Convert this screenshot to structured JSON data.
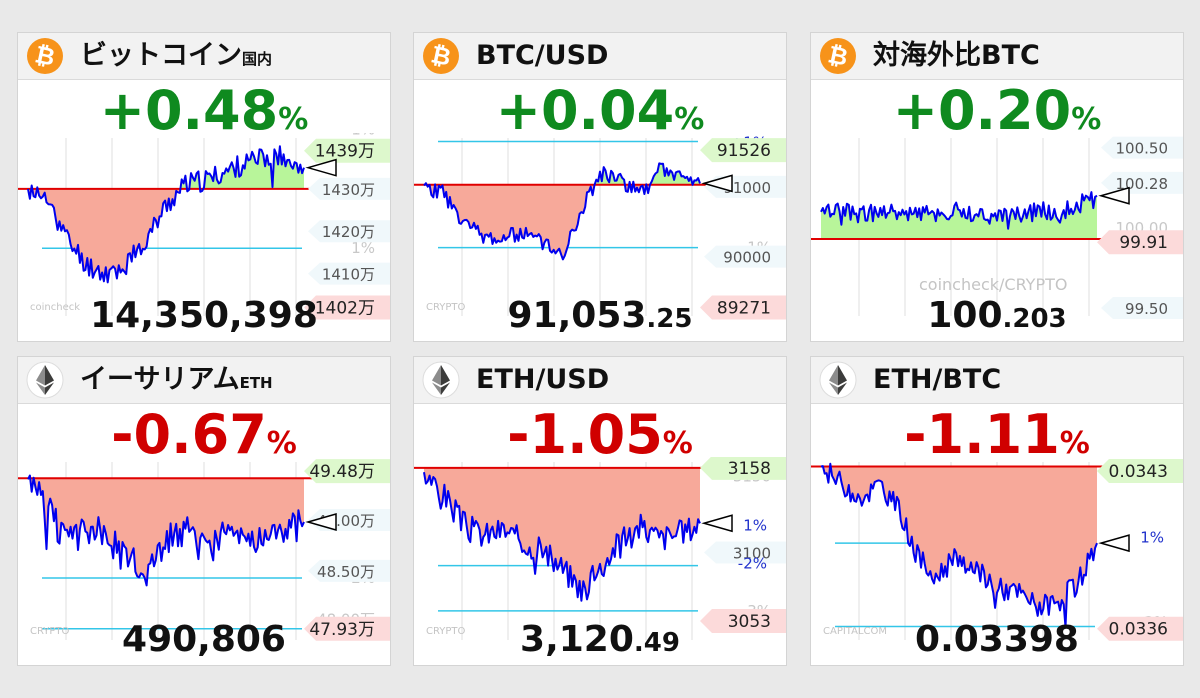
{
  "colors": {
    "up": "#0f8a1f",
    "down": "#d00000",
    "btc": "#f7931a",
    "line": "#0000ee",
    "base": "#e00000",
    "band": "#33c6e8",
    "area_down": "#f7a99a",
    "area_up": "#b8f59a"
  },
  "cards": [
    {
      "id": "btc-jpy",
      "icon": "bitcoin-icon",
      "title": "ビットコイン",
      "suffix": "国内",
      "change": "+0.48",
      "unit": "%",
      "direction": "up",
      "price": "14,350,398",
      "price_dec": "",
      "watermark": "coincheck",
      "chart_data": {
        "type": "line",
        "ylim": [
          1400,
          1442
        ],
        "base": 1430,
        "bands": [
          1444,
          1416
        ],
        "labels": [
          {
            "text": "1439万",
            "y": 1439,
            "style": "up"
          },
          {
            "text": "1430万",
            "y": 1430,
            "style": "plain"
          },
          {
            "text": "1420万",
            "y": 1420,
            "style": "plain"
          },
          {
            "text": "1410万",
            "y": 1410,
            "style": "plain"
          },
          {
            "text": "1402万",
            "y": 1402,
            "style": "down"
          }
        ],
        "ghosts": [
          {
            "text": "1%",
            "y": 1444
          },
          {
            "text": "1%",
            "y": 1416
          }
        ],
        "current": 1435,
        "seed": 11,
        "shape": [
          1430,
          1427,
          1418,
          1412,
          1410,
          1412,
          1418,
          1426,
          1431,
          1432,
          1434,
          1436,
          1437,
          1438,
          1435
        ],
        "noise": 2.6
      }
    },
    {
      "id": "btc-usd",
      "icon": "bitcoin-icon",
      "title": "BTC/USD",
      "suffix": "",
      "change": "+0.04",
      "unit": "%",
      "direction": "up",
      "price": "91,053",
      "price_dec": ".25",
      "watermark": "CRYPTO",
      "chart_data": {
        "type": "line",
        "ylim": [
          89150,
          91700
        ],
        "base": 91030,
        "bands": [
          91650,
          90130
        ],
        "labels": [
          {
            "text": "+1%",
            "y": 91650,
            "style": "blue"
          },
          {
            "text": "91526",
            "y": 91526,
            "style": "up"
          },
          {
            "text": "91000",
            "y": 91000,
            "style": "plain"
          },
          {
            "text": "90000",
            "y": 90000,
            "style": "plain"
          },
          {
            "text": "89271",
            "y": 89271,
            "style": "down"
          }
        ],
        "ghosts": [
          {
            "text": "1%",
            "y": 90130
          }
        ],
        "current": 91050,
        "seed": 23,
        "shape": [
          91020,
          90900,
          90500,
          90300,
          90250,
          90350,
          90200,
          90000,
          90700,
          91200,
          91100,
          90900,
          91250,
          91150,
          91050
        ],
        "noise": 120
      }
    },
    {
      "id": "jp-premium-btc",
      "icon": "bitcoin-icon",
      "title": "対海外比BTC",
      "suffix": "",
      "change": "+0.20",
      "unit": "%",
      "direction": "up",
      "price": "100",
      "price_dec": ".203",
      "watermark": "coincheck/CRYPTO",
      "chart_data": {
        "type": "line",
        "ylim": [
          99.45,
          100.56
        ],
        "base": 99.93,
        "bands": [],
        "labels": [
          {
            "text": "100.50",
            "y": 100.5,
            "style": "plain"
          },
          {
            "text": "100.28",
            "y": 100.28,
            "style": "plain"
          },
          {
            "text": "99.91",
            "y": 99.91,
            "style": "down"
          },
          {
            "text": "99.50",
            "y": 99.5,
            "style": "plain"
          }
        ],
        "ghosts": [
          {
            "text": "100.00",
            "y": 100.0
          }
        ],
        "current": 100.2,
        "seed": 37,
        "shape": [
          100.1,
          100.1,
          100.08,
          100.1,
          100.09,
          100.1,
          100.08,
          100.09,
          100.1,
          100.12,
          100.2
        ],
        "noise": 0.06
      }
    },
    {
      "id": "eth-jpy",
      "icon": "ethereum-icon",
      "title": "イーサリアム",
      "suffix": "ETH",
      "change": "-0.67",
      "unit": "%",
      "direction": "down",
      "price": "490,806",
      "price_dec": "",
      "watermark": "CRYPTO",
      "chart_data": {
        "type": "line",
        "ylim": [
          47.82,
          49.57
        ],
        "base": 49.41,
        "bands": [
          48.43,
          47.93
        ],
        "labels": [
          {
            "text": "49.48万",
            "y": 49.48,
            "style": "up"
          },
          {
            "text": "49.00万",
            "y": 49.0,
            "style": "plain"
          },
          {
            "text": "48.50万",
            "y": 48.5,
            "style": "plain"
          },
          {
            "text": "47.93万",
            "y": 47.93,
            "style": "down"
          }
        ],
        "ghosts": [
          {
            "text": "2%",
            "y": 48.43
          },
          {
            "text": "48.00万",
            "y": 48.02
          }
        ],
        "current": 48.98,
        "seed": 51,
        "shape": [
          49.4,
          49.1,
          48.75,
          48.9,
          48.85,
          48.6,
          48.5,
          48.8,
          48.9,
          48.7,
          48.85,
          48.95,
          48.75,
          48.9,
          48.98
        ],
        "noise": 0.16
      }
    },
    {
      "id": "eth-usd",
      "icon": "ethereum-icon",
      "title": "ETH/USD",
      "suffix": "",
      "change": "-1.05",
      "unit": "%",
      "direction": "down",
      "price": "3,120",
      "price_dec": ".49",
      "watermark": "CRYPTO",
      "chart_data": {
        "type": "line",
        "ylim": [
          3040,
          3162
        ],
        "base": 3158,
        "bands": [
          3091,
          3060
        ],
        "labels": [
          {
            "text": "3158",
            "y": 3158,
            "style": "up"
          },
          {
            "text": "1%",
            "y": 3119,
            "style": "blue"
          },
          {
            "text": "3100",
            "y": 3100,
            "style": "plain"
          },
          {
            "text": "-2%",
            "y": 3093,
            "style": "blue"
          },
          {
            "text": "3053",
            "y": 3053,
            "style": "down"
          }
        ],
        "ghosts": [
          {
            "text": "3150",
            "y": 3152
          },
          {
            "text": "3%",
            "y": 3060
          }
        ],
        "current": 3120,
        "seed": 67,
        "shape": [
          3155,
          3140,
          3120,
          3112,
          3116,
          3108,
          3100,
          3090,
          3075,
          3090,
          3110,
          3118,
          3110,
          3114,
          3120
        ],
        "noise": 9
      }
    },
    {
      "id": "eth-btc",
      "icon": "ethereum-icon",
      "title": "ETH/BTC",
      "suffix": "",
      "change": "-1.11",
      "unit": "%",
      "direction": "down",
      "price": "0.03398",
      "price_dec": "",
      "watermark": "CAPITALCOM",
      "chart_data": {
        "type": "line",
        "ylim": [
          0.03355,
          0.03434
        ],
        "base": 0.03432,
        "bands": [
          0.03398,
          0.03361
        ],
        "labels": [
          {
            "text": "0.0343",
            "y": 0.0343,
            "style": "up"
          },
          {
            "text": "1%",
            "y": 0.03401,
            "style": "blue"
          },
          {
            "text": "0.0336",
            "y": 0.0336,
            "style": "down"
          }
        ],
        "ghosts": [
          {
            "text": "2%",
            "y": 0.03363
          }
        ],
        "current": 0.03398,
        "seed": 83,
        "shape": [
          0.03432,
          0.03425,
          0.03418,
          0.03424,
          0.03412,
          0.0339,
          0.03385,
          0.03392,
          0.03385,
          0.03378,
          0.03376,
          0.0337,
          0.03372,
          0.0338,
          0.03398
        ],
        "noise": 5e-05
      }
    }
  ]
}
